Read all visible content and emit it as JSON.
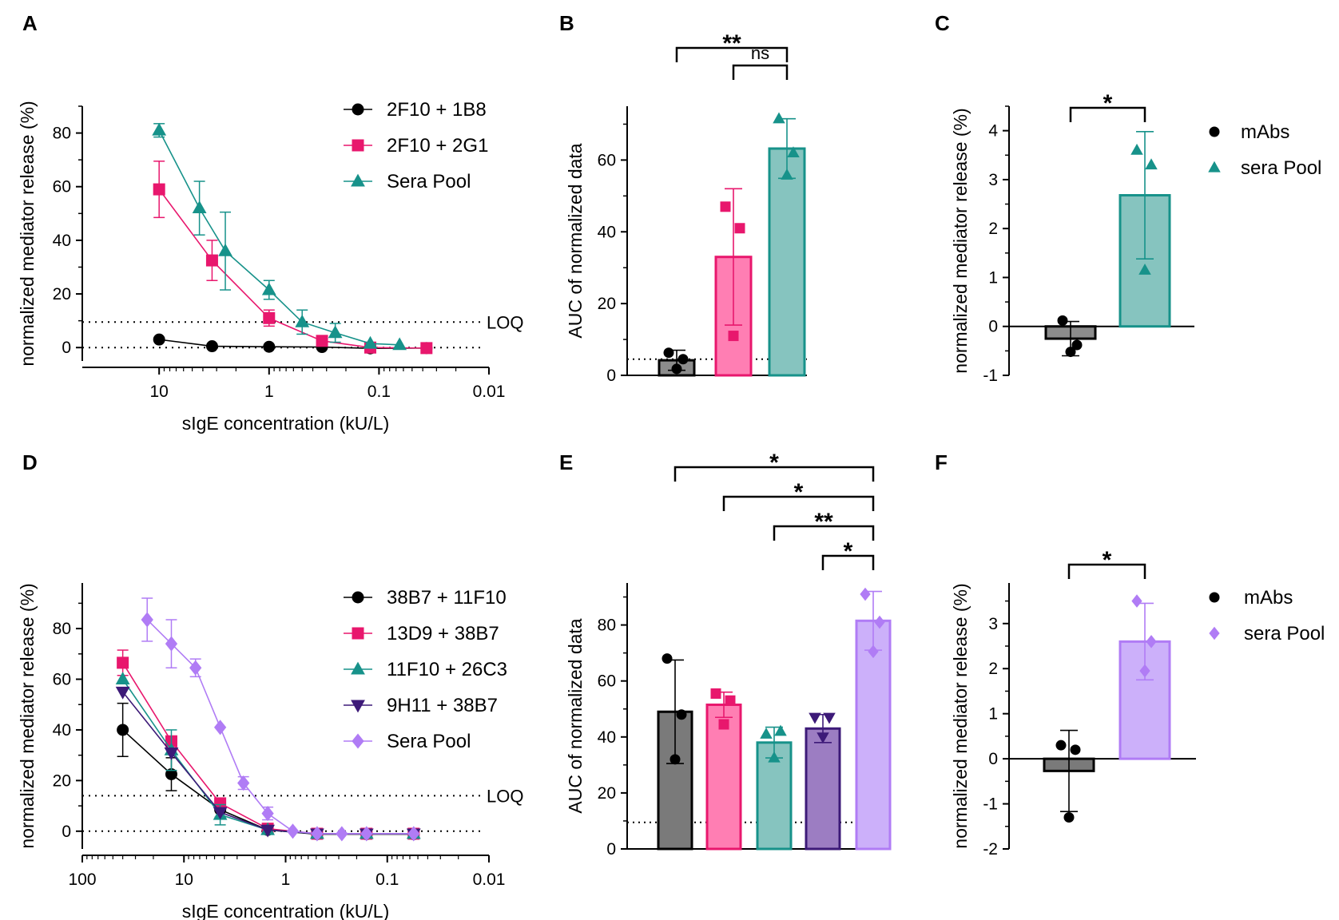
{
  "chart_data": [
    {
      "panel": "A",
      "type": "line",
      "xscale": "log-reversed",
      "xlabel": "sIgE concentration (kU/L)",
      "ylabel": "normalized mediator release (%)",
      "xlim": [
        50,
        0.01
      ],
      "ylim": [
        -5,
        90
      ],
      "xticks": [
        10,
        1,
        0.1,
        0.01
      ],
      "xtick_labels": [
        "10",
        "1",
        "0.1",
        "0.01"
      ],
      "yticks": [
        0,
        20,
        40,
        60,
        80
      ],
      "ytick_labels": [
        "0",
        "20",
        "40",
        "60",
        "80"
      ],
      "ref_lines": [
        {
          "y": 9.5,
          "label": "LOQ"
        },
        {
          "y": 0,
          "label": ""
        }
      ],
      "series": [
        {
          "name": "2F10 + 1B8",
          "color": "#000000",
          "marker": "circle",
          "x": [
            10,
            3.3,
            1,
            0.33,
            0.12,
            0.037
          ],
          "y": [
            3,
            0.5,
            0.3,
            0.2,
            -0.3,
            -0.2
          ],
          "err": [
            0,
            0,
            0,
            0,
            0,
            0
          ]
        },
        {
          "name": "2F10 + 2G1",
          "color": "#e8176d",
          "marker": "square",
          "x": [
            10,
            3.3,
            1,
            0.33,
            0.12,
            0.037
          ],
          "y": [
            59,
            32.5,
            11,
            2.5,
            0,
            -0.2
          ],
          "err": [
            10.5,
            7.5,
            3,
            0,
            0,
            0
          ]
        },
        {
          "name": "Sera Pool",
          "color": "#17928a",
          "marker": "triangle",
          "x": [
            10,
            4.3,
            2.5,
            1,
            0.5,
            0.25,
            0.12,
            0.065
          ],
          "y": [
            81,
            52,
            36,
            21.5,
            9.5,
            5.5,
            1.5,
            1
          ],
          "err": [
            2.5,
            10,
            14.5,
            3.5,
            4.5,
            3.5,
            0,
            0
          ]
        }
      ]
    },
    {
      "panel": "B",
      "type": "bar",
      "ylabel": "AUC of normalized data",
      "ylim": [
        0,
        75
      ],
      "yticks": [
        0,
        20,
        40,
        60
      ],
      "ytick_labels": [
        "0",
        "20",
        "40",
        "60"
      ],
      "ref_lines": [
        {
          "y": 4.5
        }
      ],
      "categories": [
        "2F10 + 1B8",
        "2F10 + 2G1",
        "Sera Pool"
      ],
      "values": [
        4.2,
        33,
        63.2
      ],
      "err": [
        2.8,
        19,
        8.3
      ],
      "fills": [
        "#8c8c8c",
        "#ff7eb3",
        "#86c4bf"
      ],
      "strokes": [
        "#000000",
        "#e8176d",
        "#17928a"
      ],
      "markers": [
        "circle",
        "square",
        "triangle"
      ],
      "points": [
        [
          6.3,
          4.5,
          1.8
        ],
        [
          47,
          41,
          11
        ],
        [
          71.5,
          62,
          55.8
        ]
      ],
      "significance": [
        {
          "from": 0,
          "to": 2,
          "label": "**"
        },
        {
          "from": 1,
          "to": 2,
          "label": "ns"
        }
      ]
    },
    {
      "panel": "C",
      "type": "bar",
      "ylabel": "normalized mediator release (%)",
      "ylim": [
        -1,
        4.5
      ],
      "yticks": [
        -1,
        0,
        1,
        2,
        3,
        4
      ],
      "ytick_labels": [
        "-1",
        "0",
        "1",
        "2",
        "3",
        "4"
      ],
      "categories": [
        "mAbs",
        "sera Pool"
      ],
      "values": [
        -0.25,
        2.68
      ],
      "err": [
        0.35,
        1.3
      ],
      "fills": [
        "#8c8c8c",
        "#86c4bf"
      ],
      "strokes": [
        "#000000",
        "#17928a"
      ],
      "markers": [
        "circle",
        "triangle"
      ],
      "points": [
        [
          0.12,
          -0.38,
          -0.52
        ],
        [
          3.6,
          3.3,
          1.15
        ]
      ],
      "legend": [
        {
          "name": "mAbs",
          "marker": "circle",
          "color": "#000000"
        },
        {
          "name": "sera Pool",
          "marker": "triangle",
          "color": "#17928a"
        }
      ],
      "significance": [
        {
          "from": 0,
          "to": 1,
          "label": "*"
        }
      ]
    },
    {
      "panel": "D",
      "type": "line",
      "xscale": "log-reversed",
      "xlabel": "sIgE concentration (kU/L)",
      "ylabel": "normalized mediator release (%)",
      "xlim": [
        100,
        0.01
      ],
      "ylim": [
        -7,
        98
      ],
      "xticks": [
        100,
        10,
        1,
        0.1,
        0.01
      ],
      "xtick_labels": [
        "100",
        "10",
        "1",
        "0.1",
        "0.01"
      ],
      "yticks": [
        0,
        20,
        40,
        60,
        80
      ],
      "ytick_labels": [
        "0",
        "20",
        "40",
        "60",
        "80"
      ],
      "ref_lines": [
        {
          "y": 14,
          "label": "LOQ"
        },
        {
          "y": 0,
          "label": ""
        }
      ],
      "series": [
        {
          "name": "38B7 + 11F10",
          "color": "#000000",
          "marker": "circle",
          "x": [
            40,
            13.3,
            4.4,
            1.5,
            0.49,
            0.16,
            0.055
          ],
          "y": [
            40,
            22.5,
            8.5,
            0.5,
            -1.2,
            -1.2,
            -1.2
          ],
          "err": [
            10.5,
            6.5,
            3,
            0,
            0,
            0,
            0
          ]
        },
        {
          "name": "13D9 + 38B7",
          "color": "#e8176d",
          "marker": "square",
          "x": [
            40,
            13.3,
            4.4,
            1.5,
            0.49,
            0.16,
            0.055
          ],
          "y": [
            66.5,
            35.5,
            11,
            1,
            -1,
            -1,
            -1
          ],
          "err": [
            5,
            0,
            0,
            0,
            0,
            0,
            0
          ]
        },
        {
          "name": "11F10 + 26C3",
          "color": "#17928a",
          "marker": "triangle",
          "x": [
            40,
            13.3,
            4.4,
            1.5,
            0.49,
            0.16,
            0.055
          ],
          "y": [
            60,
            32,
            6.5,
            0.5,
            -1,
            -1,
            -1
          ],
          "err": [
            0,
            8,
            4,
            0,
            0,
            0,
            0
          ]
        },
        {
          "name": "9H11 + 38B7",
          "color": "#3d1a78",
          "marker": "triangle-down",
          "x": [
            40,
            13.3,
            4.4,
            1.5,
            0.49,
            0.16,
            0.055
          ],
          "y": [
            55,
            31,
            7.5,
            0.5,
            -1,
            -1,
            -1
          ],
          "err": [
            0,
            0,
            0,
            0,
            0,
            0,
            0
          ]
        },
        {
          "name": "Sera Pool",
          "color": "#b07cf5",
          "marker": "diamond",
          "x": [
            23,
            13.3,
            7.7,
            4.4,
            2.6,
            1.5,
            0.85,
            0.49,
            0.28,
            0.16,
            0.055
          ],
          "y": [
            83.5,
            74,
            64.5,
            41,
            19,
            7,
            0,
            -1,
            -1,
            -1,
            -1
          ],
          "err": [
            8.5,
            9.5,
            3.5,
            0,
            2.5,
            2.5,
            0,
            0,
            0,
            0,
            0
          ]
        }
      ]
    },
    {
      "panel": "E",
      "type": "bar",
      "ylabel": "AUC of normalized data",
      "ylim": [
        0,
        95
      ],
      "yticks": [
        0,
        20,
        40,
        60,
        80
      ],
      "ytick_labels": [
        "0",
        "20",
        "40",
        "60",
        "80"
      ],
      "ref_lines": [
        {
          "y": 9.5
        }
      ],
      "categories": [
        "38B7 + 11F10",
        "13D9 + 38B7",
        "11F10 + 26C3",
        "9H11 + 38B7",
        "Sera Pool"
      ],
      "values": [
        49,
        51.5,
        38,
        43,
        81.5
      ],
      "err": [
        18.5,
        4.5,
        5.5,
        5,
        10.5
      ],
      "fills": [
        "#7a7a7a",
        "#ff7eb3",
        "#86c4bf",
        "#9c7dc2",
        "#ccb0fa"
      ],
      "strokes": [
        "#000000",
        "#e8176d",
        "#17928a",
        "#3d1a78",
        "#b07cf5"
      ],
      "markers": [
        "circle",
        "square",
        "triangle",
        "triangle-down",
        "diamond"
      ],
      "points": [
        [
          68,
          48,
          32
        ],
        [
          55.5,
          53,
          44.5
        ],
        [
          41,
          42,
          32.5
        ],
        [
          47,
          47,
          40
        ],
        [
          91,
          81,
          70.5
        ]
      ],
      "significance": [
        {
          "from": 0,
          "to": 4,
          "label": "*"
        },
        {
          "from": 1,
          "to": 4,
          "label": "*"
        },
        {
          "from": 2,
          "to": 4,
          "label": "**"
        },
        {
          "from": 3,
          "to": 4,
          "label": "*"
        }
      ]
    },
    {
      "panel": "F",
      "type": "bar",
      "ylabel": "normalized mediator release (%)",
      "ylim": [
        -2,
        3.9
      ],
      "yticks": [
        -2,
        -1,
        0,
        1,
        2,
        3
      ],
      "ytick_labels": [
        "-2",
        "-1",
        "0",
        "1",
        "2",
        "3"
      ],
      "categories": [
        "mAbs",
        "sera Pool"
      ],
      "values": [
        -0.27,
        2.6
      ],
      "err": [
        0.9,
        0.85
      ],
      "fills": [
        "#7a7a7a",
        "#ccb0fa"
      ],
      "strokes": [
        "#000000",
        "#b07cf5"
      ],
      "markers": [
        "circle",
        "diamond"
      ],
      "points": [
        [
          0.3,
          0.2,
          -1.3
        ],
        [
          3.5,
          2.6,
          1.95
        ]
      ],
      "legend": [
        {
          "name": "mAbs",
          "marker": "circle",
          "color": "#000000"
        },
        {
          "name": "sera Pool",
          "marker": "diamond",
          "color": "#b07cf5"
        }
      ],
      "significance": [
        {
          "from": 0,
          "to": 1,
          "label": "*"
        }
      ]
    }
  ]
}
